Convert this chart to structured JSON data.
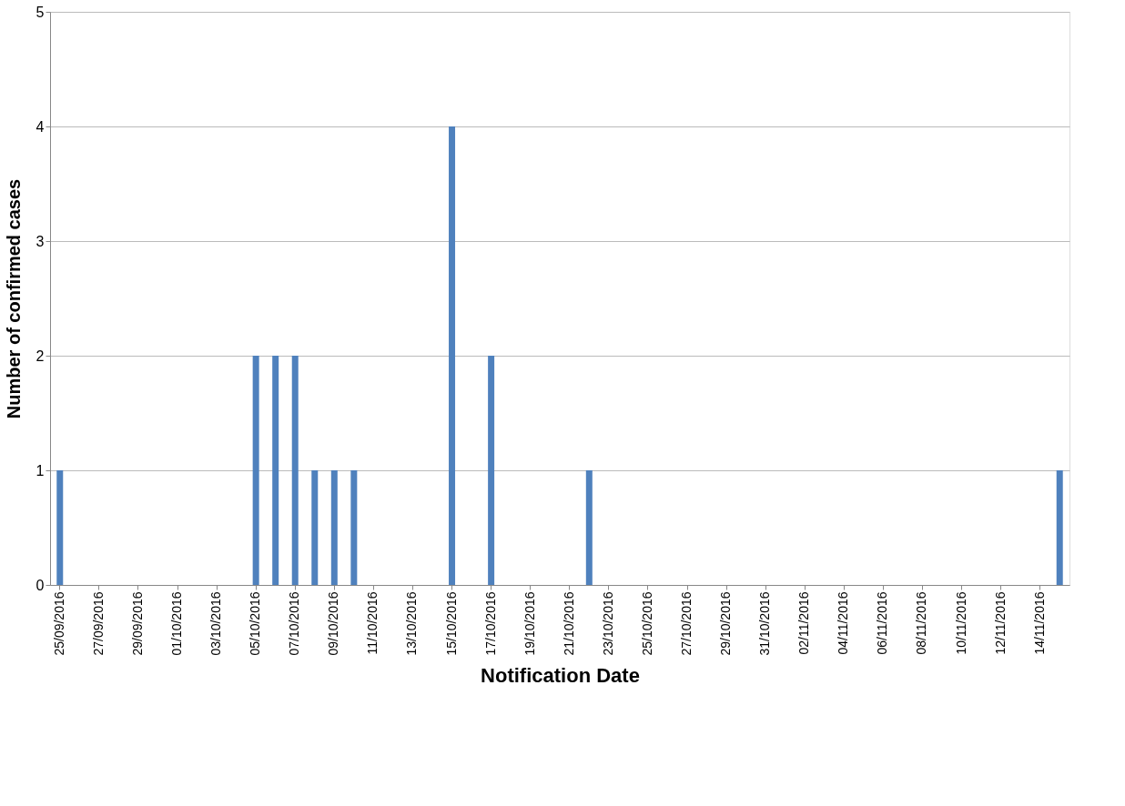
{
  "chart_data": {
    "type": "bar",
    "xlabel": "Notification Date",
    "ylabel": "Number of confirmed cases",
    "categories": [
      "25/09/2016",
      null,
      "27/09/2016",
      null,
      "29/09/2016",
      null,
      "01/10/2016",
      null,
      "03/10/2016",
      null,
      "05/10/2016",
      null,
      "07/10/2016",
      null,
      "09/10/2016",
      null,
      "11/10/2016",
      null,
      "13/10/2016",
      null,
      "15/10/2016",
      null,
      "17/10/2016",
      null,
      "19/10/2016",
      null,
      "21/10/2016",
      null,
      "23/10/2016",
      null,
      "25/10/2016",
      null,
      "27/10/2016",
      null,
      "29/10/2016",
      null,
      "31/10/2016",
      null,
      "02/11/2016",
      null,
      "04/11/2016",
      null,
      "06/11/2016",
      null,
      "08/11/2016",
      null,
      "10/11/2016",
      null,
      "12/11/2016",
      null,
      "14/11/2016",
      null
    ],
    "values": [
      1,
      0,
      0,
      0,
      0,
      0,
      0,
      0,
      0,
      0,
      2,
      2,
      2,
      1,
      1,
      1,
      0,
      0,
      0,
      0,
      4,
      0,
      2,
      0,
      0,
      0,
      0,
      1,
      0,
      0,
      0,
      0,
      0,
      0,
      0,
      0,
      0,
      0,
      0,
      0,
      0,
      0,
      0,
      0,
      0,
      0,
      0,
      0,
      0,
      0,
      0,
      1
    ],
    "color": "#4f81bd",
    "ylim": [
      0,
      5
    ],
    "yticks": [
      0,
      1,
      2,
      3,
      4,
      5
    ],
    "grid": "y"
  }
}
